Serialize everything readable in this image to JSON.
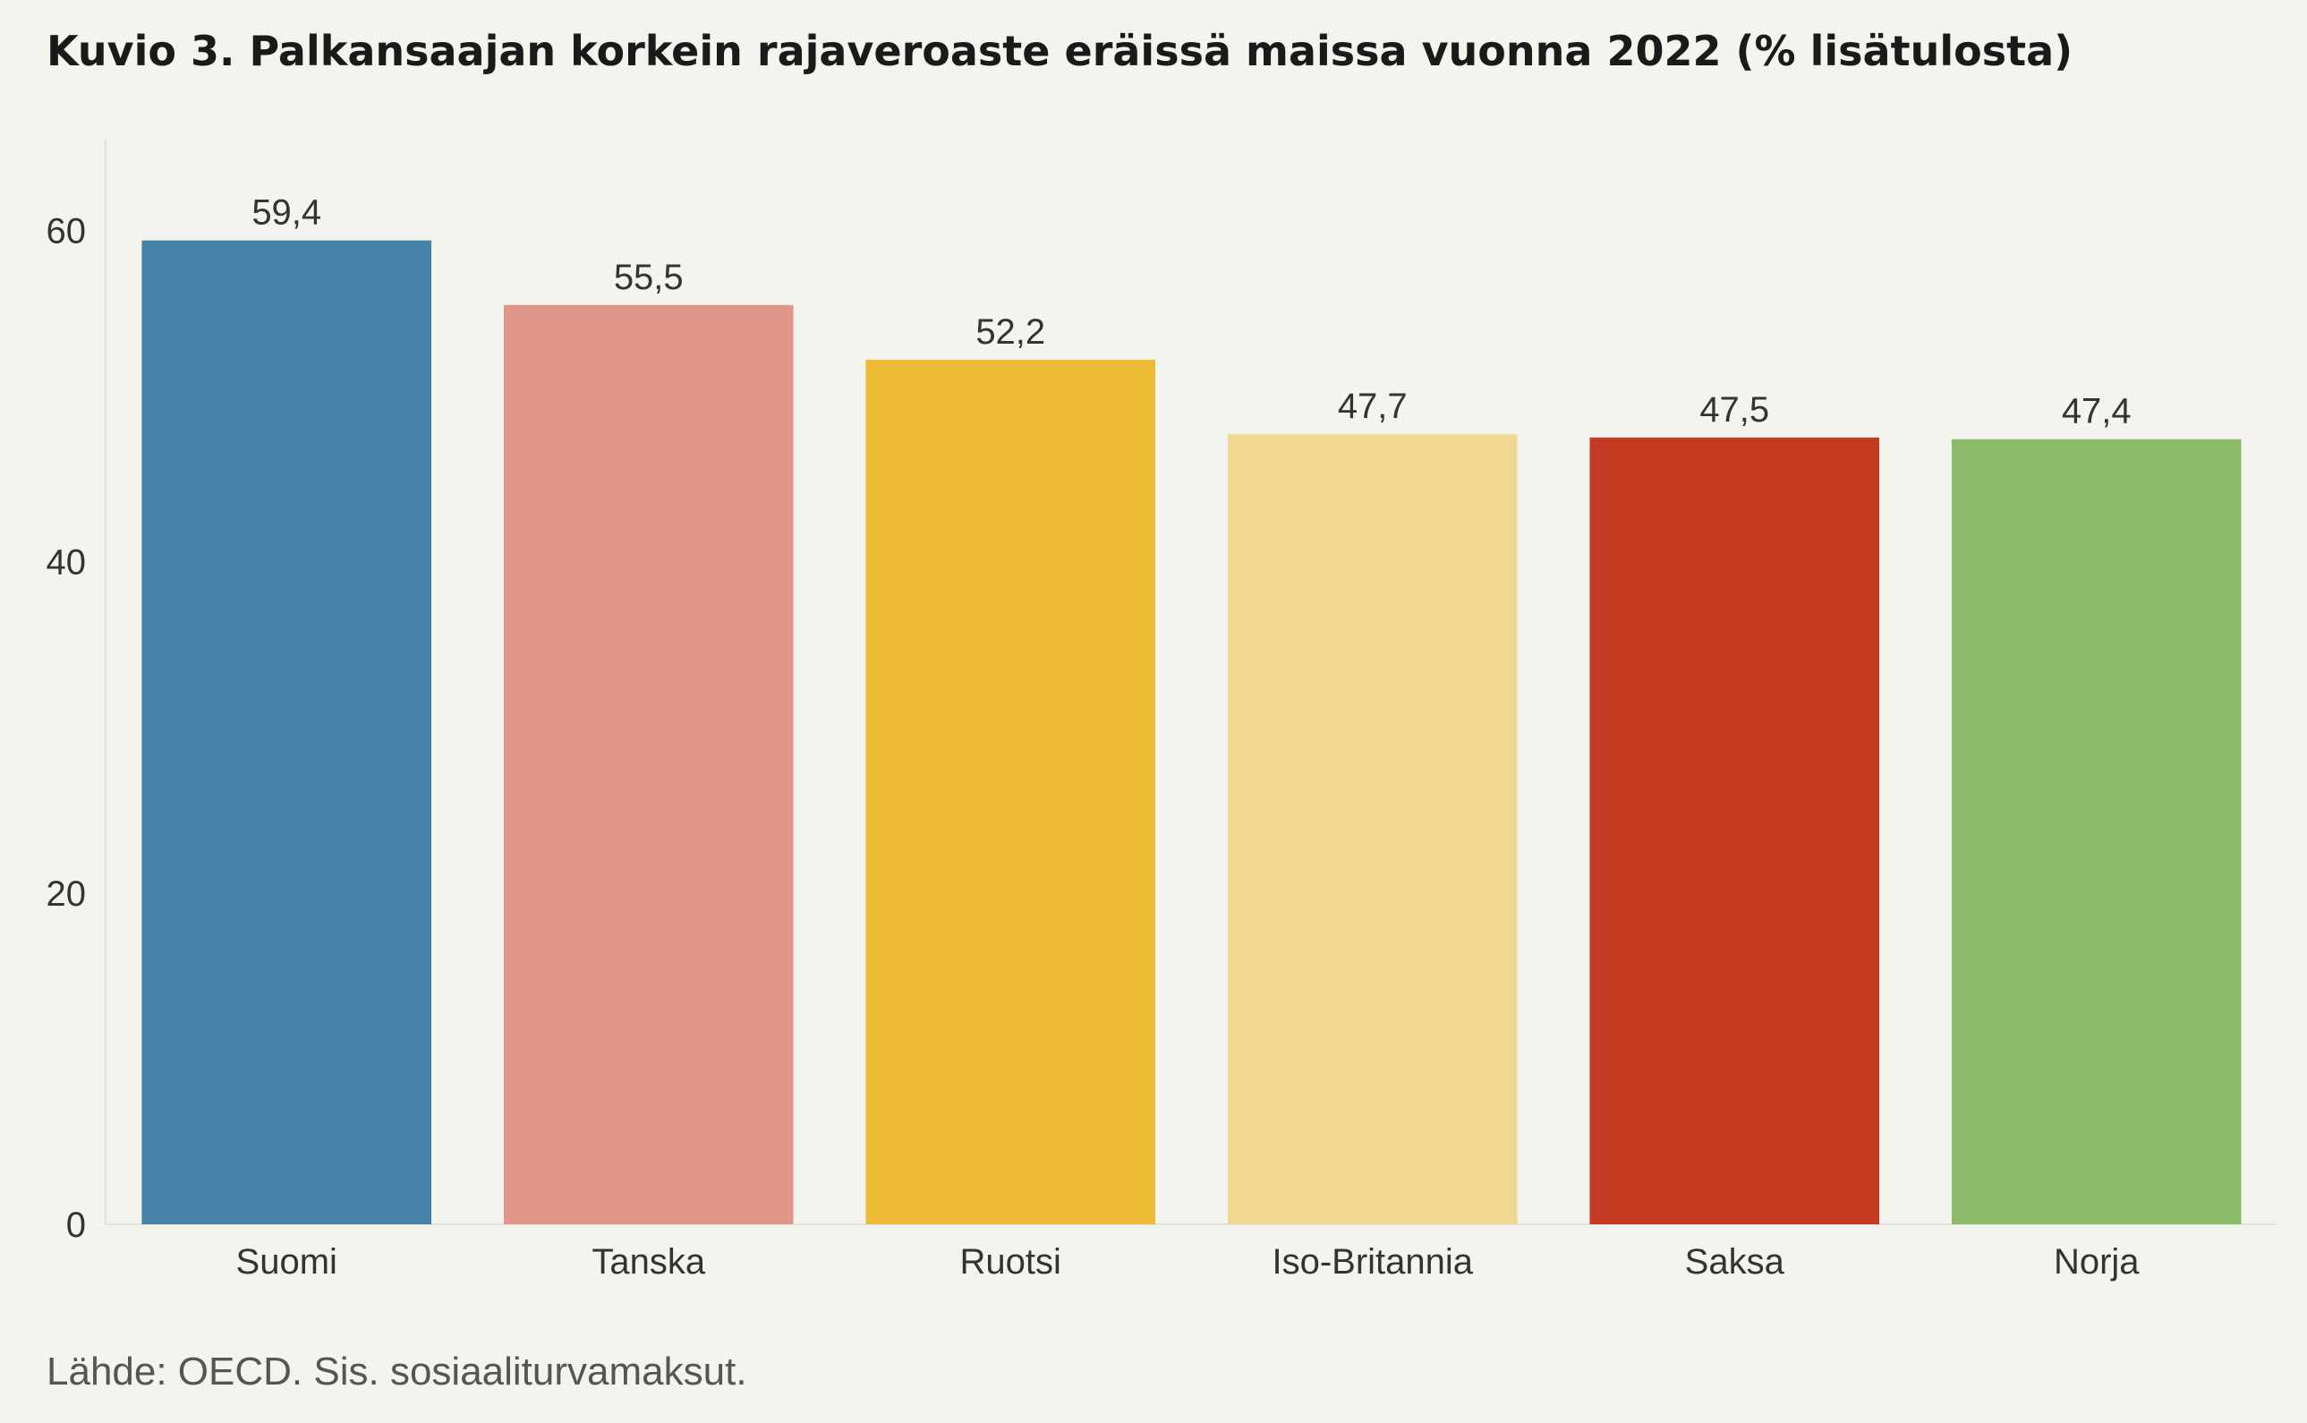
{
  "chart_data": {
    "type": "bar",
    "title": "Kuvio 3. Palkansaajan korkein rajaveroaste eräissä maissa vuonna 2022 (% lisätulosta)",
    "categories": [
      "Suomi",
      "Tanska",
      "Ruotsi",
      "Iso-Britannia",
      "Saksa",
      "Norja"
    ],
    "values": [
      59.4,
      55.5,
      52.2,
      47.7,
      47.5,
      47.4
    ],
    "data_labels": [
      "59,4",
      "55,5",
      "52,2",
      "47,7",
      "47,5",
      "47,4"
    ],
    "colors": [
      "#4682a6",
      "#e09689",
      "#eebb36",
      "#f0d891",
      "#c43a22",
      "#8bba69"
    ],
    "yticks": [
      "0",
      "20",
      "40",
      "60"
    ],
    "ylim": [
      0,
      65
    ],
    "xlabel": "",
    "ylabel": "",
    "grid": false,
    "legend": "none"
  },
  "source": "Lähde: OECD. Sis. sosiaaliturvamaksut."
}
